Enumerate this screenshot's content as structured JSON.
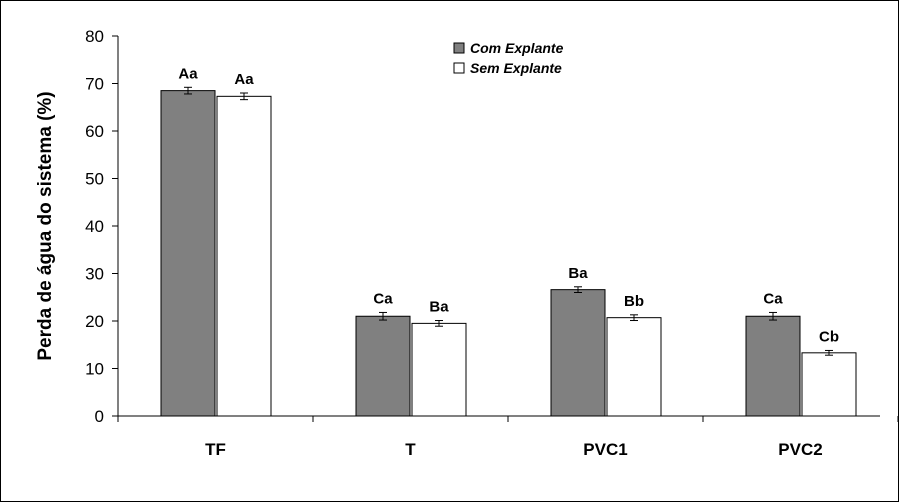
{
  "chart_data": {
    "type": "bar",
    "categories": [
      "TF",
      "T",
      "PVC1",
      "PVC2"
    ],
    "series": [
      {
        "name": "Com Explante",
        "color": "#808080",
        "values": [
          68.5,
          21.0,
          26.6,
          21.0
        ],
        "errors": [
          0.7,
          0.8,
          0.6,
          0.8
        ],
        "labels": [
          "Aa",
          "Ca",
          "Ba",
          "Ca"
        ]
      },
      {
        "name": "Sem Explante",
        "color": "#ffffff",
        "values": [
          67.3,
          19.5,
          20.7,
          13.3
        ],
        "errors": [
          0.7,
          0.6,
          0.6,
          0.5
        ],
        "labels": [
          "Aa",
          "Ba",
          "Bb",
          "Cb"
        ]
      }
    ],
    "ylabel": "Perda de água do sistema (%)",
    "ylim": [
      0,
      80
    ],
    "yticks": [
      "0",
      "10",
      "20",
      "30",
      "40",
      "50",
      "60",
      "70",
      "80"
    ],
    "grid": false,
    "legend": "top-center"
  }
}
